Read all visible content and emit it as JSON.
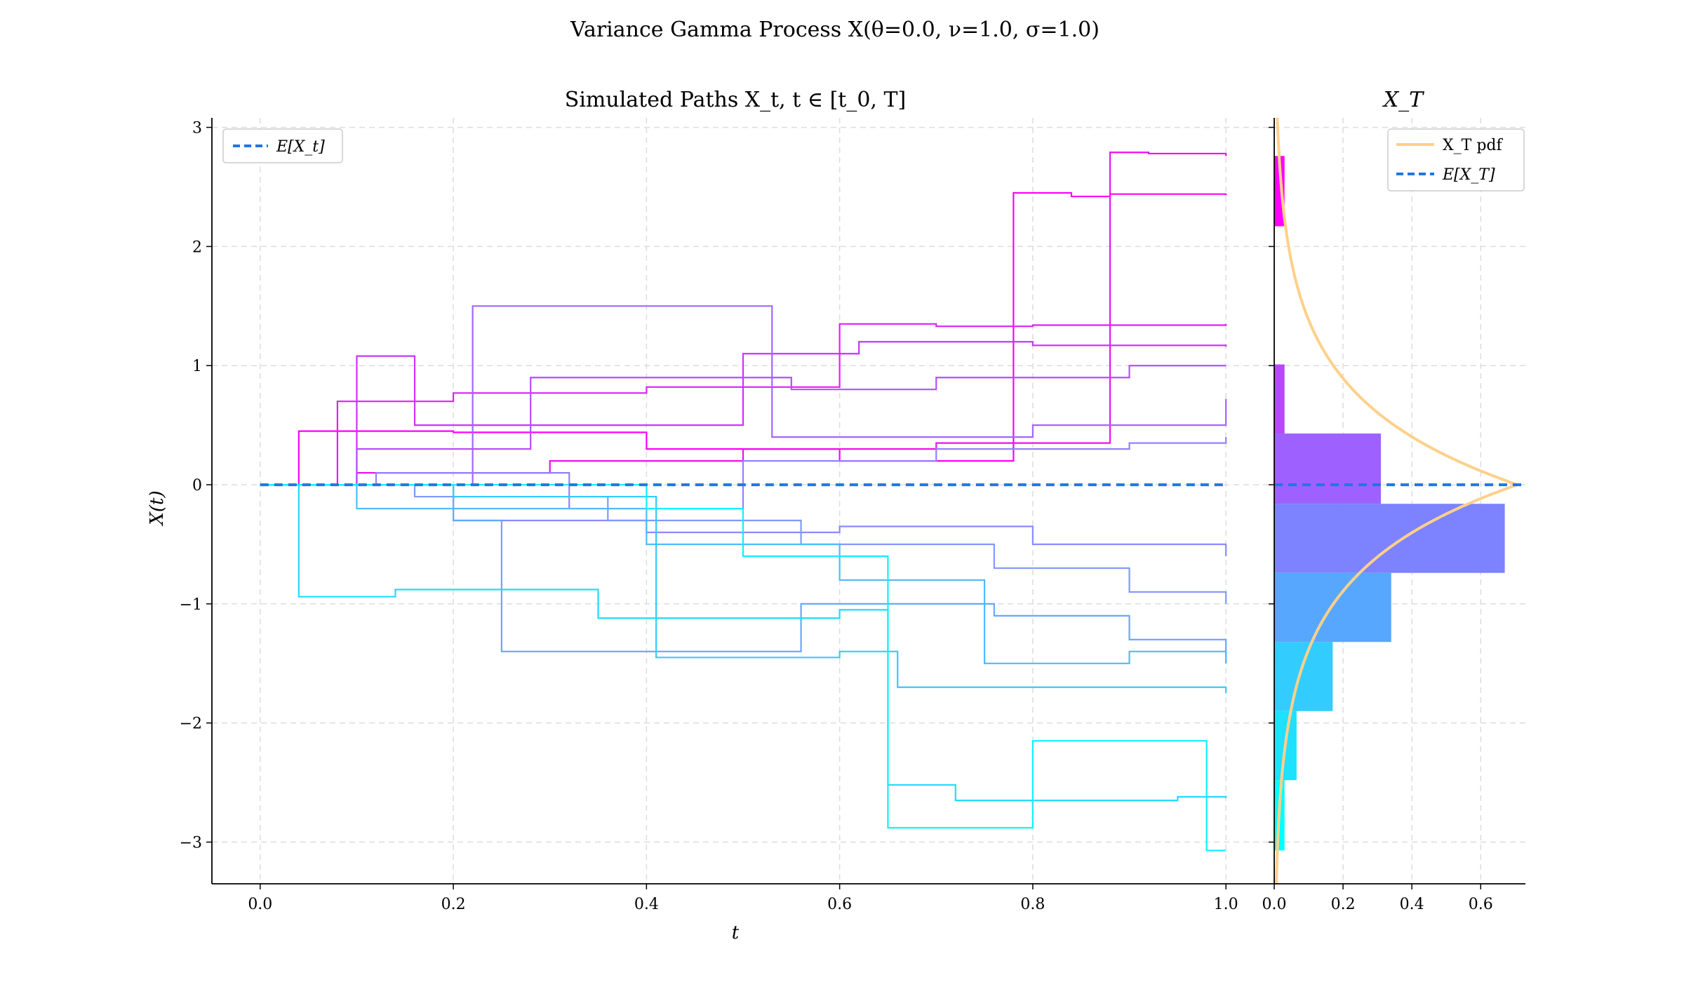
{
  "figure": {
    "suptitle": "Variance Gamma Process X(θ=0.0, ν=1.0, σ=1.0)"
  },
  "chart_data": [
    {
      "type": "line",
      "title": "Simulated Paths X_t, t ∈ [t_0, T]",
      "xlabel": "t",
      "ylabel": "X(t)",
      "xlim": [
        -0.05,
        1.05
      ],
      "ylim": [
        -3.35,
        3.08
      ],
      "xticks": [
        0.0,
        0.2,
        0.4,
        0.6,
        0.8,
        1.0
      ],
      "xtick_labels": [
        "0.0",
        "0.2",
        "0.4",
        "0.6",
        "0.8",
        "1.0"
      ],
      "yticks": [
        -3,
        -2,
        -1,
        0,
        1,
        2,
        3
      ],
      "ytick_labels": [
        "−3",
        "−2",
        "−1",
        "0",
        "1",
        "2",
        "3"
      ],
      "grid": true,
      "legend": {
        "placement": "top-left",
        "entries": [
          "E[X_t]"
        ]
      },
      "mean_line": {
        "label": "E[X_t]",
        "value": 0.0,
        "color": "#1f77e4"
      },
      "series": [
        {
          "color": "#ff00ff",
          "points": [
            [
              0,
              0
            ],
            [
              0.04,
              0.45
            ],
            [
              0.2,
              0.44
            ],
            [
              0.4,
              0.3
            ],
            [
              0.6,
              0.2
            ],
            [
              0.78,
              0.2
            ],
            [
              0.78,
              2.45
            ],
            [
              0.84,
              2.42
            ],
            [
              0.88,
              2.44
            ],
            [
              1.0,
              2.43
            ]
          ]
        },
        {
          "color": "#f20df2",
          "points": [
            [
              0,
              0
            ],
            [
              0.1,
              0.1
            ],
            [
              0.3,
              0.2
            ],
            [
              0.5,
              0.3
            ],
            [
              0.7,
              0.35
            ],
            [
              0.88,
              0.35
            ],
            [
              0.88,
              2.79
            ],
            [
              0.92,
              2.78
            ],
            [
              1.0,
              2.76
            ]
          ]
        },
        {
          "color": "#e01fff",
          "points": [
            [
              0,
              0
            ],
            [
              0.08,
              0.7
            ],
            [
              0.2,
              0.77
            ],
            [
              0.4,
              0.82
            ],
            [
              0.6,
              1.35
            ],
            [
              0.7,
              1.33
            ],
            [
              0.8,
              1.34
            ],
            [
              1.0,
              1.35
            ]
          ]
        },
        {
          "color": "#cc33ff",
          "points": [
            [
              0,
              0
            ],
            [
              0.1,
              1.08
            ],
            [
              0.16,
              1.08
            ],
            [
              0.16,
              0.5
            ],
            [
              0.3,
              0.5
            ],
            [
              0.5,
              1.1
            ],
            [
              0.62,
              1.2
            ],
            [
              0.8,
              1.17
            ],
            [
              1.0,
              1.16
            ]
          ]
        },
        {
          "color": "#b84dff",
          "points": [
            [
              0,
              0
            ],
            [
              0.1,
              0.3
            ],
            [
              0.28,
              0.9
            ],
            [
              0.4,
              0.9
            ],
            [
              0.55,
              0.8
            ],
            [
              0.7,
              0.9
            ],
            [
              0.9,
              1.0
            ],
            [
              1.0,
              1.0
            ]
          ]
        },
        {
          "color": "#a366ff",
          "points": [
            [
              0,
              0
            ],
            [
              0.22,
              0.2
            ],
            [
              0.22,
              1.5
            ],
            [
              0.53,
              1.5
            ],
            [
              0.53,
              0.4
            ],
            [
              0.8,
              0.5
            ],
            [
              1.0,
              0.72
            ]
          ]
        },
        {
          "color": "#9480ff",
          "points": [
            [
              0,
              0
            ],
            [
              0.12,
              0.1
            ],
            [
              0.32,
              -0.2
            ],
            [
              0.5,
              0.2
            ],
            [
              0.7,
              0.3
            ],
            [
              0.9,
              0.35
            ],
            [
              1.0,
              0.4
            ]
          ]
        },
        {
          "color": "#8a8aff",
          "points": [
            [
              0,
              0
            ],
            [
              0.2,
              -0.3
            ],
            [
              0.4,
              -0.4
            ],
            [
              0.6,
              -0.35
            ],
            [
              0.8,
              -0.5
            ],
            [
              1.0,
              -0.6
            ]
          ]
        },
        {
          "color": "#8099ff",
          "points": [
            [
              0,
              0
            ],
            [
              0.16,
              -0.1
            ],
            [
              0.36,
              -0.3
            ],
            [
              0.56,
              -0.5
            ],
            [
              0.76,
              -0.7
            ],
            [
              0.9,
              -0.9
            ],
            [
              1.0,
              -1.0
            ]
          ]
        },
        {
          "color": "#66a8ff",
          "points": [
            [
              0,
              0
            ],
            [
              0.2,
              -0.3
            ],
            [
              0.25,
              -1.4
            ],
            [
              0.4,
              -1.4
            ],
            [
              0.56,
              -1.0
            ],
            [
              0.76,
              -1.1
            ],
            [
              0.9,
              -1.3
            ],
            [
              1.0,
              -1.5
            ]
          ]
        },
        {
          "color": "#4dbbff",
          "points": [
            [
              0,
              0
            ],
            [
              0.1,
              -0.2
            ],
            [
              0.4,
              -0.5
            ],
            [
              0.6,
              -0.8
            ],
            [
              0.75,
              -1.5
            ],
            [
              0.9,
              -1.4
            ],
            [
              1.0,
              -1.5
            ]
          ]
        },
        {
          "color": "#33ccff",
          "points": [
            [
              0,
              0
            ],
            [
              0.2,
              -0.1
            ],
            [
              0.41,
              -1.45
            ],
            [
              0.6,
              -1.4
            ],
            [
              0.66,
              -1.7
            ],
            [
              0.9,
              -1.7
            ],
            [
              1.0,
              -1.75
            ]
          ]
        },
        {
          "color": "#1fdcff",
          "points": [
            [
              0,
              0
            ],
            [
              0.04,
              -0.94
            ],
            [
              0.14,
              -0.88
            ],
            [
              0.35,
              -0.88
            ],
            [
              0.35,
              -1.12
            ],
            [
              0.6,
              -1.05
            ],
            [
              0.65,
              -2.52
            ],
            [
              0.72,
              -2.65
            ],
            [
              0.95,
              -2.62
            ],
            [
              1.0,
              -2.63
            ]
          ]
        },
        {
          "color": "#0ff0ff",
          "points": [
            [
              0,
              0
            ],
            [
              0.4,
              -0.2
            ],
            [
              0.5,
              -0.6
            ],
            [
              0.65,
              -0.85
            ],
            [
              0.65,
              -2.88
            ],
            [
              0.8,
              -2.85
            ],
            [
              0.8,
              -2.15
            ],
            [
              0.92,
              -2.15
            ],
            [
              0.98,
              -2.18
            ],
            [
              0.98,
              -3.07
            ],
            [
              1.0,
              -3.07
            ]
          ]
        }
      ]
    },
    {
      "type": "bar",
      "orientation": "horizontal",
      "title": "X_T",
      "xlim": [
        0.0,
        0.73
      ],
      "xticks": [
        0.0,
        0.2,
        0.4,
        0.6
      ],
      "xtick_labels": [
        "0.0",
        "0.2",
        "0.4",
        "0.6"
      ],
      "grid": true,
      "legend": {
        "placement": "top-right",
        "entries": [
          "X_T pdf",
          "E[X_T]"
        ]
      },
      "bins": [
        {
          "lo": -3.07,
          "hi": -2.48,
          "density": 0.03,
          "color": "#00ffff"
        },
        {
          "lo": -2.48,
          "hi": -1.9,
          "density": 0.065,
          "color": "#1ee0ff"
        },
        {
          "lo": -1.9,
          "hi": -1.32,
          "density": 0.17,
          "color": "#33ccff"
        },
        {
          "lo": -1.32,
          "hi": -0.74,
          "density": 0.34,
          "color": "#58a7ff"
        },
        {
          "lo": -0.74,
          "hi": -0.16,
          "density": 0.67,
          "color": "#7d82ff"
        },
        {
          "lo": -0.16,
          "hi": 0.43,
          "density": 0.31,
          "color": "#9e61ff"
        },
        {
          "lo": 0.43,
          "hi": 1.01,
          "density": 0.03,
          "color": "#b748ff"
        },
        {
          "lo": 1.01,
          "hi": 1.6,
          "density": 0.0,
          "color": "#d12eff"
        },
        {
          "lo": 2.17,
          "hi": 2.76,
          "density": 0.03,
          "color": "#ff00ff"
        }
      ],
      "pdf": {
        "label": "X_T pdf",
        "color": "#ffd08a",
        "peak": 0.707,
        "scale": 1.0
      },
      "mean_line": {
        "label": "E[X_T]",
        "value": 0.0,
        "color": "#1f77e4"
      }
    }
  ]
}
